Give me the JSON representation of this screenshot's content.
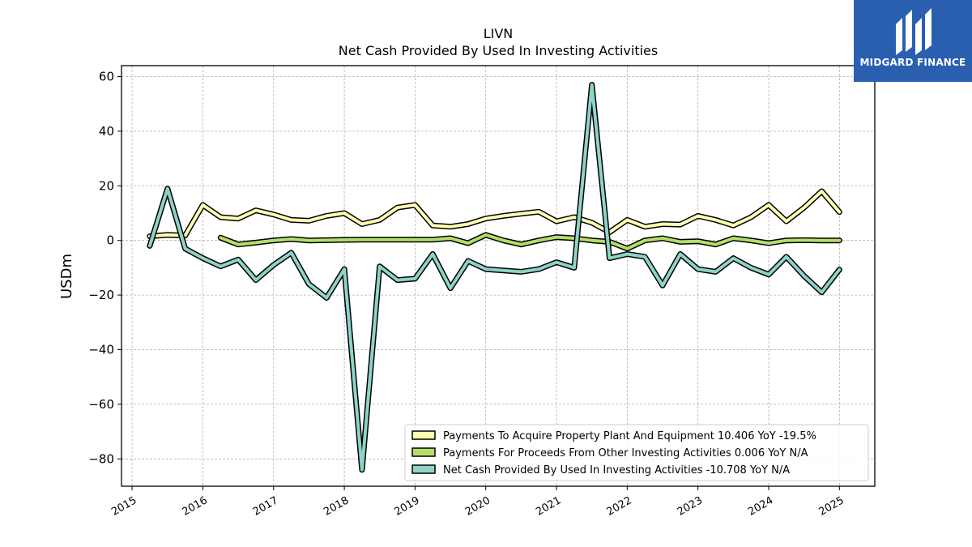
{
  "header": {
    "ticker": "LIVN",
    "subtitle": "Net Cash Provided By Used In Investing Activities"
  },
  "brand": {
    "name": "MIDGARD FINANCE",
    "color": "#2a5fb0"
  },
  "chart_data": {
    "type": "line",
    "title": "LIVN",
    "subtitle": "Net Cash Provided By Used In Investing Activities",
    "xlabel": "",
    "ylabel": "USDm",
    "xlim": [
      2014.85,
      2025.5
    ],
    "ylim": [
      -90,
      64
    ],
    "grid": true,
    "legend_position": "lower-right",
    "x_ticks": [
      "2015",
      "2016",
      "2017",
      "2018",
      "2019",
      "2020",
      "2021",
      "2022",
      "2023",
      "2024",
      "2025"
    ],
    "y_ticks": [
      60,
      40,
      20,
      0,
      -20,
      -40,
      -60,
      -80
    ],
    "y_tick_labels": [
      "60",
      "40",
      "20",
      "0",
      "−20",
      "−40",
      "−60",
      "−80"
    ],
    "series": [
      {
        "name": "Payments To Acquire Property Plant And Equipment",
        "legend": "Payments To Acquire Property Plant And Equipment  10.406 YoY -19.5%",
        "color": "#ffffb3",
        "x": [
          2015.25,
          2015.5,
          2015.75,
          2016.0,
          2016.25,
          2016.5,
          2016.75,
          2017.0,
          2017.25,
          2017.5,
          2017.75,
          2018.0,
          2018.25,
          2018.5,
          2018.75,
          2019.0,
          2019.25,
          2019.5,
          2019.75,
          2020.0,
          2020.25,
          2020.5,
          2020.75,
          2021.0,
          2021.25,
          2021.5,
          2021.75,
          2022.0,
          2022.25,
          2022.5,
          2022.75,
          2023.0,
          2023.25,
          2023.5,
          2023.75,
          2024.0,
          2024.25,
          2024.5,
          2024.75,
          2025.0
        ],
        "y": [
          1.5,
          2.0,
          1.8,
          13.0,
          8.5,
          8.0,
          11.0,
          9.5,
          7.5,
          7.2,
          9.0,
          10.0,
          6.0,
          7.5,
          12.0,
          13.0,
          5.5,
          5.0,
          6.0,
          8.0,
          9.0,
          9.8,
          10.5,
          7.0,
          8.5,
          6.5,
          3.0,
          7.5,
          5.0,
          6.0,
          5.8,
          9.0,
          7.5,
          5.5,
          8.5,
          13.0,
          7.0,
          12.0,
          18.0,
          10.4
        ]
      },
      {
        "name": "Payments For Proceeds From Other Investing Activities",
        "legend": "Payments For Proceeds From Other Investing Activities  0.006 YoY N/A",
        "color": "#b3de69",
        "x": [
          2016.25,
          2016.5,
          2016.75,
          2017.0,
          2017.25,
          2017.5,
          2017.75,
          2018.0,
          2018.25,
          2018.5,
          2018.75,
          2019.0,
          2019.25,
          2019.5,
          2019.75,
          2020.0,
          2020.25,
          2020.5,
          2020.75,
          2021.0,
          2021.25,
          2021.5,
          2021.75,
          2022.0,
          2022.25,
          2022.5,
          2022.75,
          2023.0,
          2023.25,
          2023.5,
          2023.75,
          2024.0,
          2024.25,
          2024.5,
          2024.75,
          2025.0
        ],
        "y": [
          1.0,
          -1.5,
          -0.8,
          0.0,
          0.5,
          0.0,
          0.1,
          0.2,
          0.3,
          0.3,
          0.3,
          0.3,
          0.3,
          0.8,
          -1.0,
          2.0,
          0.0,
          -1.5,
          0.0,
          1.2,
          0.8,
          0.0,
          -0.5,
          -3.0,
          0.0,
          0.8,
          -0.5,
          -0.3,
          -1.5,
          0.8,
          0.0,
          -1.0,
          0.0,
          0.1,
          0.0,
          0.006
        ]
      },
      {
        "name": "Net Cash Provided By Used In Investing Activities",
        "legend": "Net Cash Provided By Used In Investing Activities  -10.708 YoY N/A",
        "color": "#8dd3c7",
        "x": [
          2015.25,
          2015.5,
          2015.75,
          2016.0,
          2016.25,
          2016.5,
          2016.75,
          2017.0,
          2017.25,
          2017.5,
          2017.75,
          2018.0,
          2018.25,
          2018.5,
          2018.75,
          2019.0,
          2019.25,
          2019.5,
          2019.75,
          2020.0,
          2020.25,
          2020.5,
          2020.75,
          2021.0,
          2021.25,
          2021.5,
          2021.75,
          2022.0,
          2022.25,
          2022.5,
          2022.75,
          2023.0,
          2023.25,
          2023.5,
          2023.75,
          2024.0,
          2024.25,
          2024.5,
          2024.75,
          2025.0
        ],
        "y": [
          -2.0,
          19.0,
          -3.0,
          -6.5,
          -9.5,
          -7.0,
          -14.5,
          -9.0,
          -4.5,
          -16.0,
          -21.0,
          -10.5,
          -84.0,
          -9.5,
          -14.5,
          -14.0,
          -5.0,
          -17.5,
          -7.5,
          -10.5,
          -11.0,
          -11.5,
          -10.5,
          -8.0,
          -10.0,
          57.0,
          -6.5,
          -5.0,
          -6.0,
          -16.5,
          -5.0,
          -10.5,
          -11.5,
          -6.5,
          -10.0,
          -12.5,
          -6.0,
          -13.0,
          -19.0,
          -10.7
        ]
      }
    ]
  }
}
